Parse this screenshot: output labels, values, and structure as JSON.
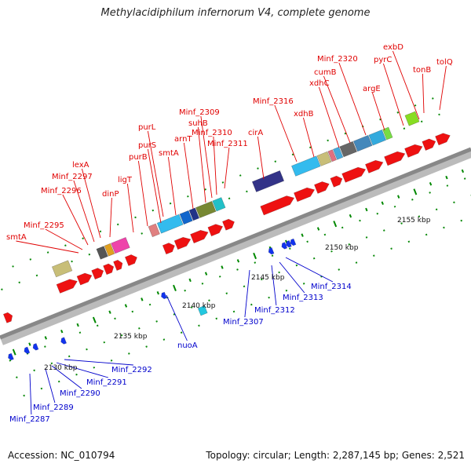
{
  "title": "Methylacidiphilum infernorum V4, complete genome",
  "footer": {
    "accession": "Accession: NC_010794",
    "summary": "Topology: circular; Length: 2,287,145 bp; Genes: 2,521"
  },
  "colors": {
    "forward_label": "#e00000",
    "reverse_label": "#0000cc",
    "forward_gene": "#ee1111",
    "reverse_gene": "#1133ee",
    "backbone": "#888888",
    "scale_tick": "#008800"
  },
  "scale_labels": [
    "2130 kbp",
    "2135 kbp",
    "2140 kbp",
    "2145 kbp",
    "2150 kbp",
    "2155 kbp"
  ],
  "forward_labels": [
    "smtA",
    "Minf_2295",
    "Minf_2296",
    "Minf_2297",
    "lexA",
    "dinP",
    "ligT",
    "purB",
    "purS",
    "purL",
    "smtA",
    "arnT",
    "suhB",
    "Minf_2309",
    "Minf_2310",
    "Minf_2311",
    "cirA",
    "Minf_2316",
    "xdhB",
    "xdhC",
    "cumB",
    "Minf_2320",
    "argE",
    "pyrC",
    "exbD",
    "tonB",
    "tolQ"
  ],
  "reverse_labels": [
    "Minf_2287",
    "Minf_2289",
    "Minf_2290",
    "Minf_2291",
    "Minf_2292",
    "nuoA",
    "Minf_2307",
    "Minf_2312",
    "Minf_2313",
    "Minf_2314"
  ]
}
